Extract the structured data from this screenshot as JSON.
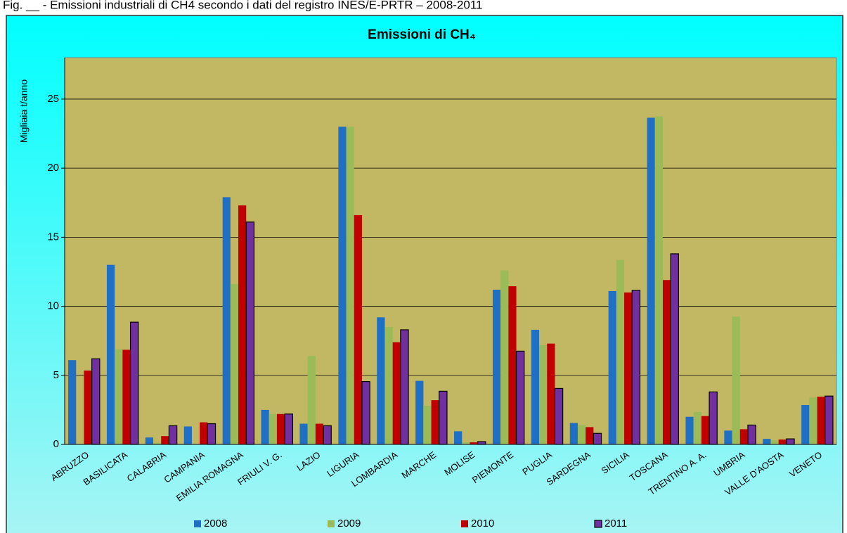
{
  "caption": "Fig. __ - Emissioni industriali di CH4 secondo i dati del registro INES/E-PRTR – 2008-2011",
  "chart_data": {
    "type": "bar",
    "title": "Emissioni di CH₄",
    "y_label": "Migliaia t/anno",
    "categories": [
      "ABRUZZO",
      "BASILICATA",
      "CALABRIA",
      "CAMPANIA",
      "EMILIA ROMAGNA",
      "FRIULI V. G.",
      "LAZIO",
      "LIGURIA",
      "LOMBARDIA",
      "MARCHE",
      "MOLISE",
      "PIEMONTE",
      "PUGLIA",
      "SARDEGNA",
      "SICILIA",
      "TOSCANA",
      "TRENTINO A. A.",
      "UMBRIA",
      "VALLE D'AOSTA",
      "VENETO"
    ],
    "series": [
      {
        "name": "2008",
        "color": "#1f6fc5",
        "values": [
          6.1,
          13.0,
          0.5,
          1.3,
          17.9,
          2.5,
          1.5,
          23.0,
          9.2,
          4.6,
          0.95,
          11.2,
          8.3,
          1.55,
          11.1,
          23.65,
          2.0,
          1.0,
          0.4,
          2.85
        ]
      },
      {
        "name": "2009",
        "color": "#9bbb59",
        "values": [
          0,
          6.9,
          0.1,
          0,
          11.6,
          2.2,
          6.4,
          23.0,
          8.5,
          2.8,
          0.15,
          12.6,
          7.2,
          1.4,
          13.35,
          23.75,
          2.35,
          9.25,
          0.3,
          3.4
        ]
      },
      {
        "name": "2010",
        "color": "#c00000",
        "values": [
          5.35,
          6.85,
          0.6,
          1.6,
          17.3,
          2.2,
          1.5,
          16.6,
          7.4,
          3.2,
          0.15,
          11.45,
          7.3,
          1.25,
          11.0,
          11.9,
          2.05,
          1.1,
          0.35,
          3.45
        ]
      },
      {
        "name": "2011",
        "color": "#7030a0",
        "edgecolor": "#000000",
        "values": [
          6.2,
          8.85,
          1.35,
          1.5,
          16.1,
          2.2,
          1.35,
          4.55,
          8.3,
          3.85,
          0.2,
          6.75,
          4.05,
          0.8,
          11.15,
          13.8,
          3.8,
          1.4,
          0.4,
          3.5
        ]
      }
    ],
    "ylim": [
      0,
      28
    ],
    "yticks": [
      0,
      5,
      10,
      15,
      20,
      25
    ],
    "grid": true
  }
}
